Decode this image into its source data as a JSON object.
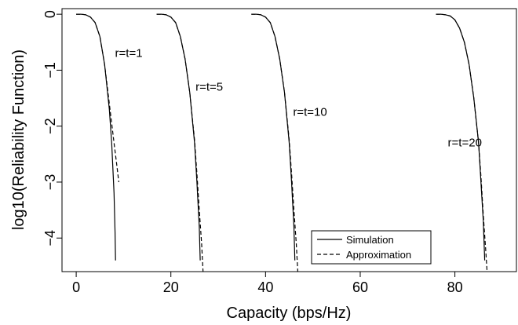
{
  "chart_data": {
    "type": "line",
    "title": "",
    "xlabel": "Capacity (bps/Hz)",
    "ylabel": "log10(Reliability Function)",
    "xlim": [
      -3,
      93
    ],
    "ylim": [
      -4.6,
      0.1
    ],
    "xticks": [
      0,
      20,
      40,
      60,
      80
    ],
    "yticks": [
      0,
      -1,
      -2,
      -3,
      -4
    ],
    "x_tick_labels": [
      "0",
      "20",
      "40",
      "60",
      "80"
    ],
    "y_tick_labels": [
      "0",
      "−1",
      "−2",
      "−3",
      "−4"
    ],
    "grid": false,
    "legend_position": "bottom-right",
    "series": [
      {
        "name": "Simulation",
        "style": "solid",
        "curves": [
          {
            "x": [
              0,
              1,
              2,
              3,
              4,
              5,
              6,
              7,
              7.5,
              8,
              8.2,
              8.3
            ],
            "y": [
              0,
              0,
              -0.01,
              -0.05,
              -0.15,
              -0.4,
              -0.9,
              -1.7,
              -2.3,
              -3.2,
              -3.9,
              -4.4
            ]
          },
          {
            "x": [
              17,
              18,
              19,
              20,
              21,
              22,
              23,
              24,
              25,
              25.5,
              26,
              26.2
            ],
            "y": [
              0,
              0,
              -0.01,
              -0.05,
              -0.15,
              -0.4,
              -0.8,
              -1.4,
              -2.3,
              -3.0,
              -3.8,
              -4.4
            ]
          },
          {
            "x": [
              37,
              38,
              39,
              40,
              41,
              42,
              43,
              44,
              45,
              45.5,
              46,
              46.2
            ],
            "y": [
              0,
              0,
              -0.01,
              -0.05,
              -0.15,
              -0.4,
              -0.8,
              -1.4,
              -2.3,
              -3.0,
              -3.8,
              -4.4
            ]
          },
          {
            "x": [
              76,
              77,
              78,
              79,
              80,
              81,
              82,
              83,
              84,
              85,
              85.5,
              86,
              86.3
            ],
            "y": [
              0,
              0,
              -0.01,
              -0.03,
              -0.1,
              -0.25,
              -0.5,
              -0.9,
              -1.5,
              -2.3,
              -3.0,
              -3.7,
              -4.4
            ]
          }
        ]
      },
      {
        "name": "Approximation",
        "style": "dashed",
        "curves": [
          {
            "x": [
              0,
              1,
              2,
              3,
              4,
              5,
              6,
              7,
              8,
              8.5,
              9
            ],
            "y": [
              0,
              0,
              -0.01,
              -0.05,
              -0.15,
              -0.4,
              -0.9,
              -1.6,
              -2.3,
              -2.65,
              -3.0
            ]
          },
          {
            "x": [
              17,
              18,
              19,
              20,
              21,
              22,
              23,
              24,
              25,
              25.5,
              26,
              26.5,
              26.8
            ],
            "y": [
              0,
              0,
              -0.01,
              -0.05,
              -0.15,
              -0.4,
              -0.8,
              -1.4,
              -2.25,
              -2.85,
              -3.5,
              -4.1,
              -4.6
            ]
          },
          {
            "x": [
              37,
              38,
              39,
              40,
              41,
              42,
              43,
              44,
              45,
              45.5,
              46,
              46.5,
              46.8
            ],
            "y": [
              0,
              0,
              -0.01,
              -0.05,
              -0.15,
              -0.4,
              -0.8,
              -1.4,
              -2.25,
              -2.85,
              -3.5,
              -4.1,
              -4.6
            ]
          },
          {
            "x": [
              76,
              77,
              78,
              79,
              80,
              81,
              82,
              83,
              84,
              85,
              85.5,
              86,
              86.5,
              86.8
            ],
            "y": [
              0,
              0,
              -0.01,
              -0.03,
              -0.1,
              -0.25,
              -0.5,
              -0.9,
              -1.5,
              -2.3,
              -2.9,
              -3.6,
              -4.2,
              -4.6
            ]
          }
        ]
      }
    ],
    "annotations": [
      {
        "text": "r=t=1",
        "x": 8.2,
        "y": -0.7
      },
      {
        "text": "r=t=5",
        "x": 25.2,
        "y": -1.3
      },
      {
        "text": "r=t=10",
        "x": 45.8,
        "y": -1.75
      },
      {
        "text": "r=t=20",
        "x": 78.5,
        "y": -2.3
      }
    ]
  }
}
